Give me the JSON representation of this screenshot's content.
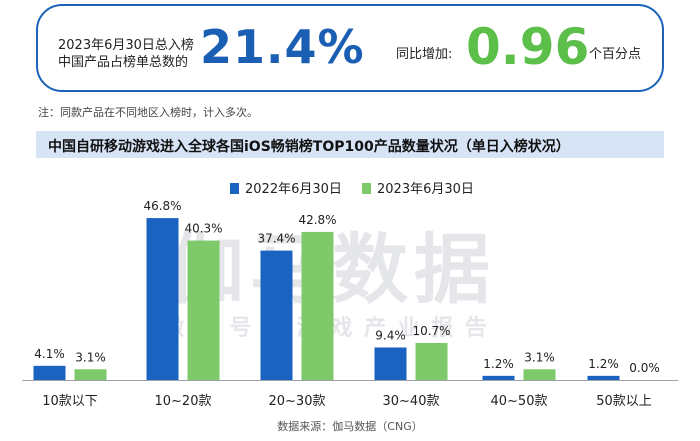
{
  "kpi": {
    "left_label_line1": "2023年6月30日总入榜",
    "left_label_line2": "中国产品占榜单总数的",
    "left_value": "21.4%",
    "right_label": "同比增加:",
    "right_value": "0.96",
    "right_unit": "个百分点"
  },
  "note": "注：同款产品在不同地区入榜时，计入多次。",
  "watermark": {
    "main": "伽马数据",
    "sub": "微 信 号 ： 游 戏 产 业 报 告"
  },
  "source": "数据来源：伽马数据（CNG）",
  "colors": {
    "blue": "#1a63c0",
    "green": "#7ec96a",
    "accent_text": "#1a5fb4",
    "accent_green": "#5cbf4a"
  },
  "chart_data": {
    "type": "bar",
    "title": "中国自研移动游戏进入全球各国iOS畅销榜TOP100产品数量状况（单日入榜状况）",
    "categories": [
      "10款以下",
      "10~20款",
      "20~30款",
      "30~40款",
      "40~50款",
      "50款以上"
    ],
    "series": [
      {
        "name": "2022年6月30日",
        "values": [
          4.1,
          46.8,
          37.4,
          9.4,
          1.2,
          1.2
        ],
        "labels": [
          "4.1%",
          "46.8%",
          "37.4%",
          "9.4%",
          "1.2%",
          "1.2%"
        ]
      },
      {
        "name": "2023年6月30日",
        "values": [
          3.1,
          40.3,
          42.8,
          10.7,
          3.1,
          0.0
        ],
        "labels": [
          "3.1%",
          "40.3%",
          "42.8%",
          "10.7%",
          "3.1%",
          "0.0%"
        ]
      }
    ],
    "unit": "%",
    "ylim": [
      0,
      50
    ],
    "legend": "top-center",
    "grid": false
  }
}
